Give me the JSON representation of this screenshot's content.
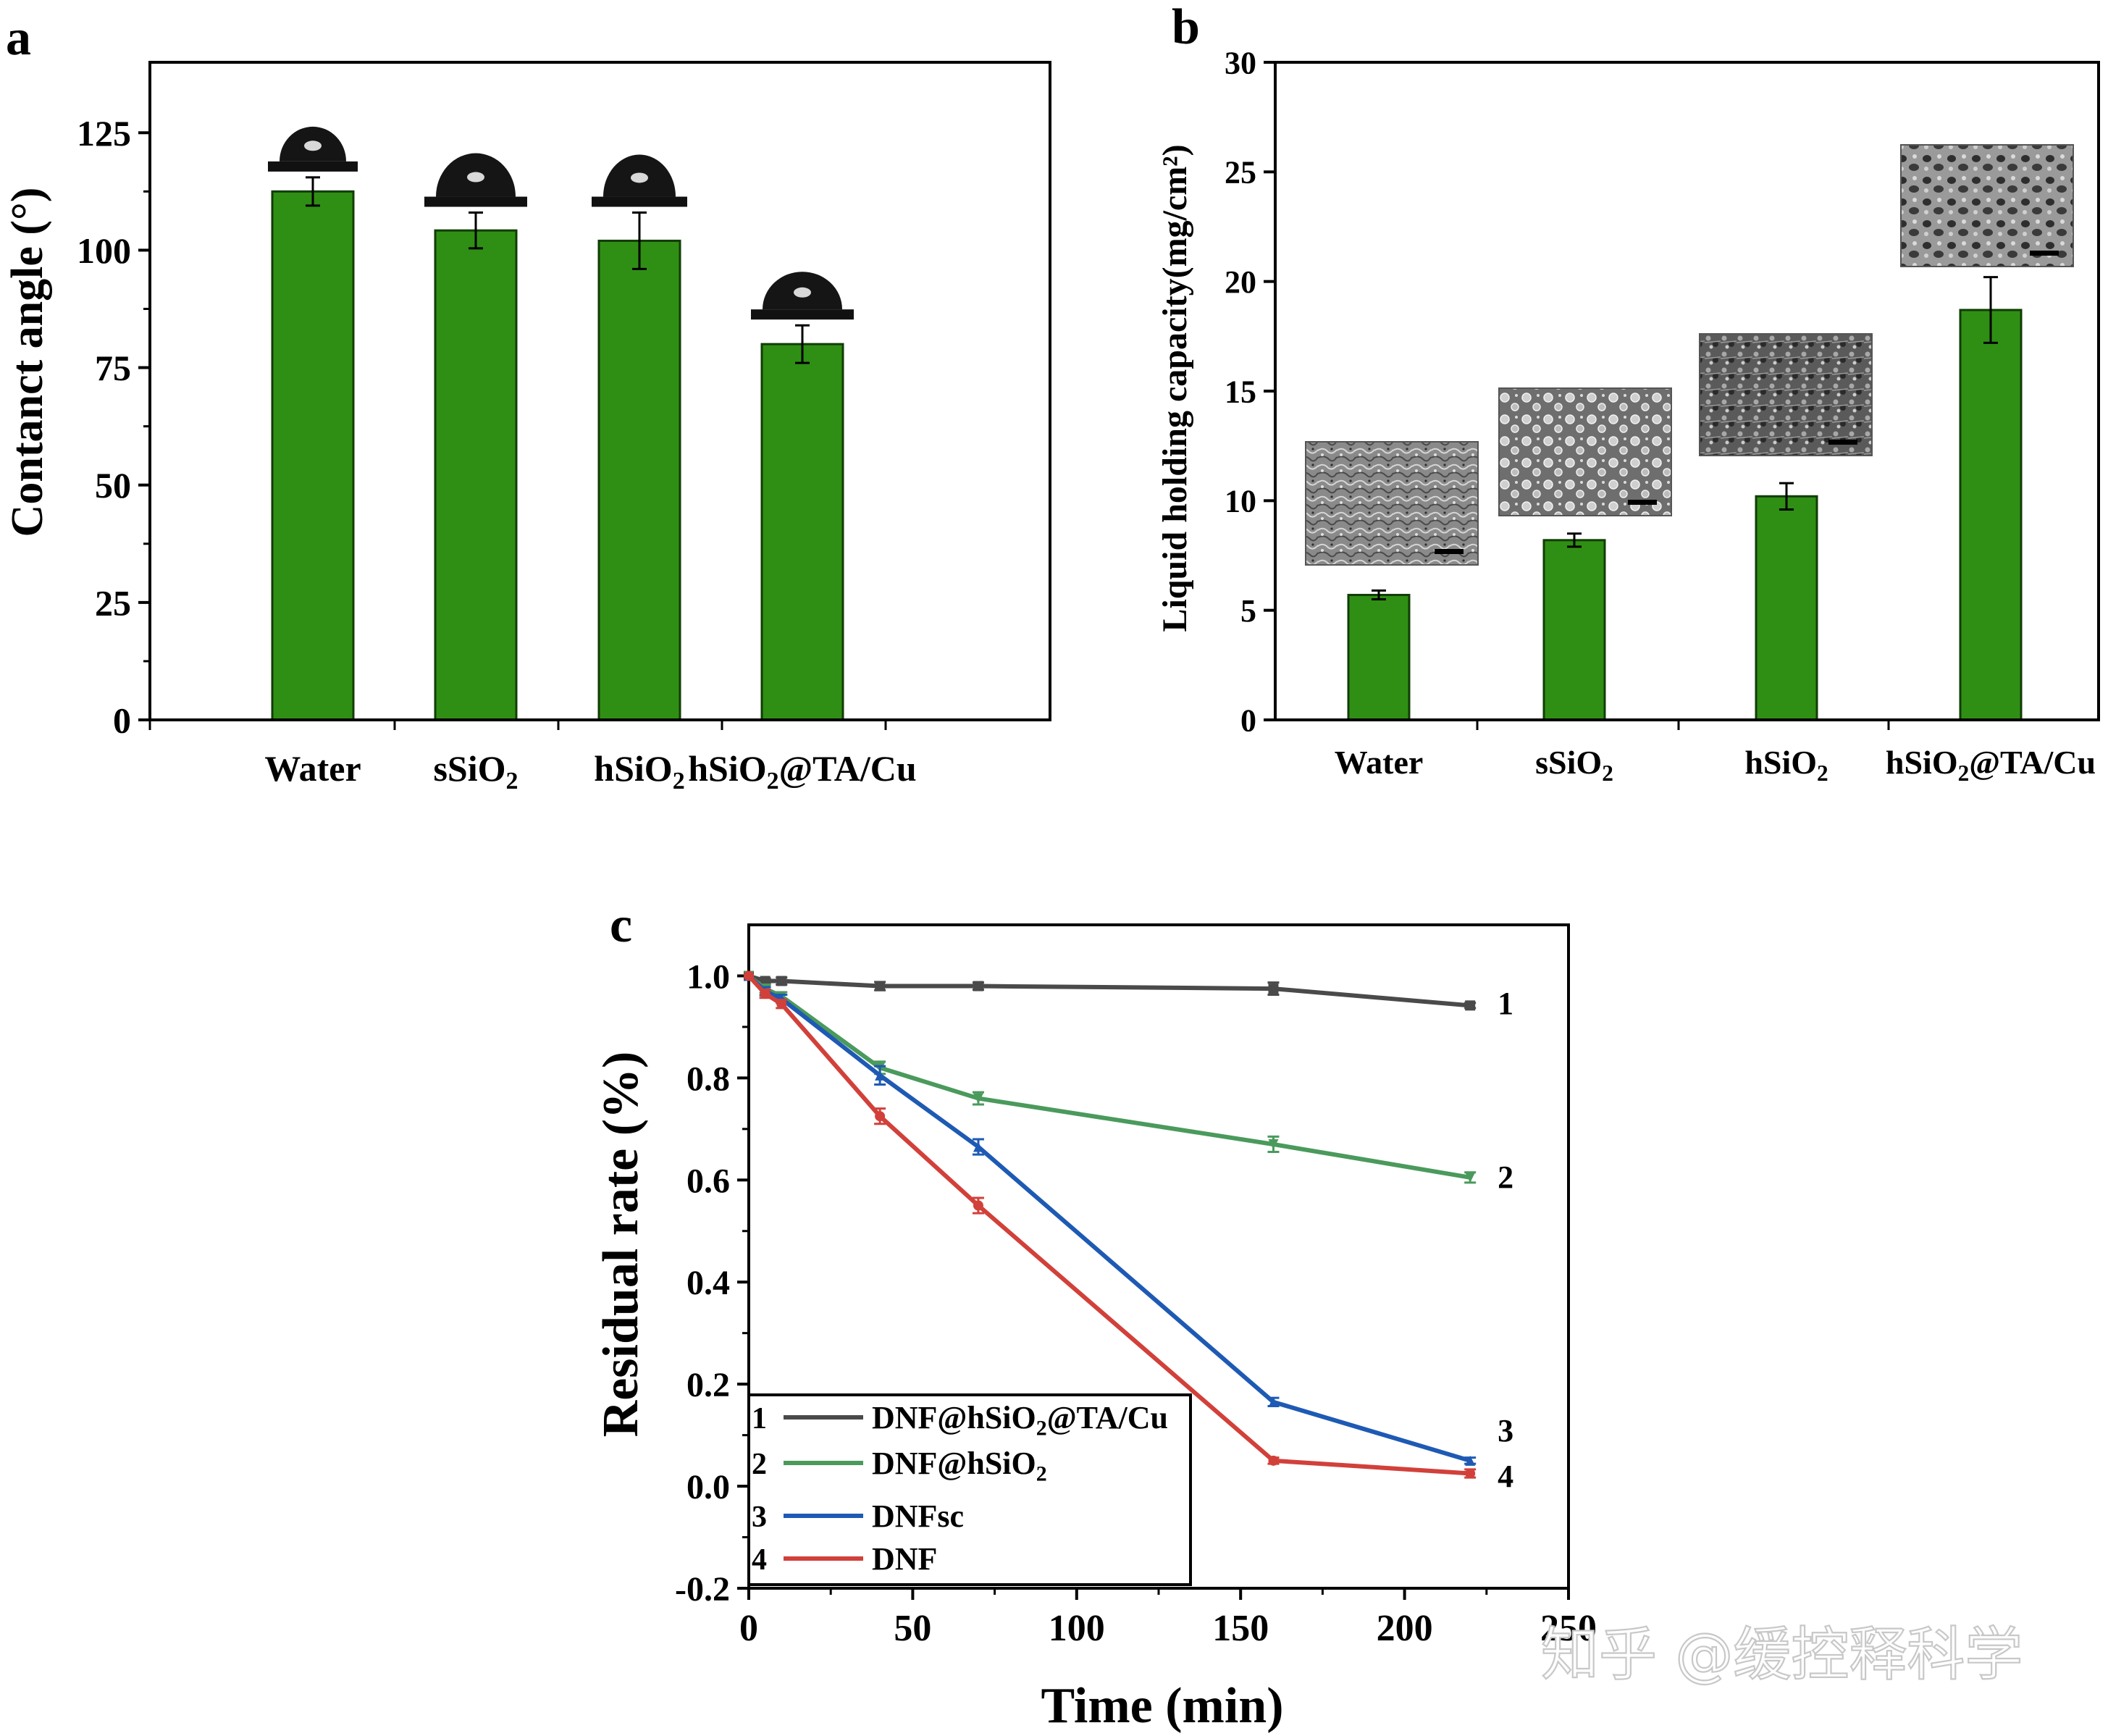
{
  "panels": {
    "a": {
      "letter": "a"
    },
    "b": {
      "letter": "b"
    },
    "c": {
      "letter": "c"
    }
  },
  "watermark": "知乎 @缓控释科学",
  "chart_data": [
    {
      "id": "a",
      "type": "bar",
      "ylabel": "Contanct angle (°)",
      "xlabel": "",
      "categories": [
        "Water",
        "sSiO2",
        "hSiO2",
        "hSiO2@TA/Cu"
      ],
      "category_labels": [
        {
          "main": "Water",
          "sub": "",
          "tail": ""
        },
        {
          "main": "sSiO",
          "sub": "2",
          "tail": ""
        },
        {
          "main": "hSiO",
          "sub": "2",
          "tail": ""
        },
        {
          "main": "hSiO",
          "sub": "2",
          "tail": "@TA/Cu"
        }
      ],
      "values": [
        112.5,
        104.2,
        102.0,
        80.0
      ],
      "errors": [
        3.0,
        3.8,
        6.0,
        4.0
      ],
      "ylim": [
        0,
        140
      ],
      "yticks": [
        0,
        25,
        50,
        75,
        100,
        125
      ],
      "bar_color": "#2f8f14",
      "insets": "contact-angle droplet images above each bar",
      "grid": false
    },
    {
      "id": "b",
      "type": "bar",
      "ylabel": "Liquid holding capacity(mg/cm²)",
      "xlabel": "",
      "categories": [
        "Water",
        "sSiO2",
        "hSiO2",
        "hSiO2@TA/Cu"
      ],
      "category_labels": [
        {
          "main": "Water",
          "sub": "",
          "tail": ""
        },
        {
          "main": "sSiO",
          "sub": "2",
          "tail": ""
        },
        {
          "main": "hSiO",
          "sub": "2",
          "tail": ""
        },
        {
          "main": "hSiO",
          "sub": "2",
          "tail": "@TA/Cu"
        }
      ],
      "values": [
        5.7,
        8.2,
        10.2,
        18.7
      ],
      "errors": [
        0.2,
        0.3,
        0.6,
        1.5
      ],
      "ylim": [
        0,
        30
      ],
      "yticks": [
        0,
        5,
        10,
        15,
        20,
        25,
        30
      ],
      "bar_color": "#2f8f14",
      "insets": "SEM micrographs above each bar",
      "grid": false
    },
    {
      "id": "c",
      "type": "line",
      "xlabel": "Time (min)",
      "ylabel": "Residual rate (%)",
      "xlim": [
        0,
        250
      ],
      "ylim": [
        -0.2,
        1.1
      ],
      "xticks": [
        0,
        50,
        100,
        150,
        200,
        250
      ],
      "yticks": [
        -0.2,
        0.0,
        0.2,
        0.4,
        0.6,
        0.8,
        1.0
      ],
      "legend_position": "bottom-left",
      "grid": false,
      "series": [
        {
          "name": "DNF@hSiO2@TA/Cu",
          "name_main": "DNF@hSiO",
          "name_sub": "2",
          "name_tail": "@TA/Cu",
          "num": "1",
          "color": "#4a4a4a",
          "marker": "square",
          "x": [
            0,
            5,
            10,
            40,
            70,
            160,
            220
          ],
          "y": [
            1.0,
            0.99,
            0.99,
            0.98,
            0.98,
            0.975,
            0.942
          ],
          "err": [
            0,
            0.005,
            0.007,
            0.008,
            0.007,
            0.012,
            0.005
          ]
        },
        {
          "name": "DNF@hSiO2",
          "name_main": "DNF@hSiO",
          "name_sub": "2",
          "name_tail": "",
          "num": "2",
          "color": "#4a9a5c",
          "marker": "triangle-down",
          "x": [
            0,
            5,
            10,
            40,
            70,
            160,
            220
          ],
          "y": [
            1.0,
            0.975,
            0.96,
            0.82,
            0.76,
            0.67,
            0.605
          ],
          "err": [
            0,
            0.008,
            0.008,
            0.012,
            0.012,
            0.015,
            0.01
          ]
        },
        {
          "name": "DNFsc",
          "name_main": "DNFsc",
          "name_sub": "",
          "name_tail": "",
          "num": "3",
          "color": "#1e5ab4",
          "marker": "triangle-up",
          "x": [
            0,
            5,
            10,
            40,
            70,
            160,
            220
          ],
          "y": [
            1.0,
            0.97,
            0.955,
            0.805,
            0.665,
            0.165,
            0.05
          ],
          "err": [
            0,
            0.008,
            0.008,
            0.018,
            0.015,
            0.008,
            0.006
          ]
        },
        {
          "name": "DNF",
          "name_main": "DNF",
          "name_sub": "",
          "name_tail": "",
          "num": "4",
          "color": "#d2403a",
          "marker": "circle",
          "x": [
            0,
            5,
            10,
            40,
            70,
            160,
            220
          ],
          "y": [
            1.0,
            0.965,
            0.945,
            0.725,
            0.55,
            0.05,
            0.025
          ],
          "err": [
            0,
            0.008,
            0.008,
            0.015,
            0.015,
            0.006,
            0.008
          ]
        }
      ]
    }
  ]
}
